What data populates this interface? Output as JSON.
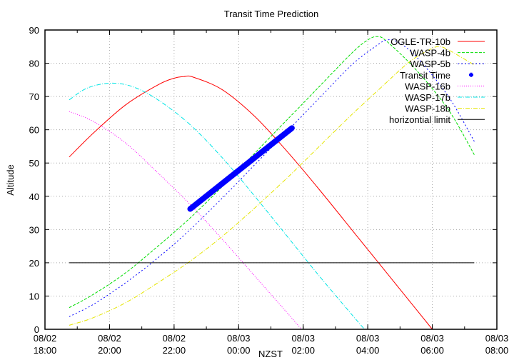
{
  "chart_data": {
    "type": "line",
    "title": "Transit Time Prediction",
    "xlabel": "NZST",
    "ylabel": "Altitude",
    "ylim": [
      0,
      90
    ],
    "xlim_hours": [
      0,
      14
    ],
    "x_origin": "08/02 18:00",
    "grid": true,
    "legend_position": "top-right inside",
    "y_ticks": [
      0,
      10,
      20,
      30,
      40,
      50,
      60,
      70,
      80,
      90
    ],
    "x_ticks": [
      {
        "date": "08/02",
        "time": "18:00",
        "h": 0
      },
      {
        "date": "08/02",
        "time": "20:00",
        "h": 2
      },
      {
        "date": "08/02",
        "time": "22:00",
        "h": 4
      },
      {
        "date": "08/03",
        "time": "00:00",
        "h": 6
      },
      {
        "date": "08/03",
        "time": "02:00",
        "h": 8
      },
      {
        "date": "08/03",
        "time": "04:00",
        "h": 10
      },
      {
        "date": "08/03",
        "time": "06:00",
        "h": 12
      },
      {
        "date": "08/03",
        "time": "08:00",
        "h": 14
      }
    ],
    "series": [
      {
        "name": "OGLE-TR-10b",
        "color": "#ff0000",
        "dash": "none",
        "points": [
          [
            0.75,
            51.8
          ],
          [
            1.5,
            59
          ],
          [
            2.5,
            67.5
          ],
          [
            3.5,
            73.5
          ],
          [
            4.0,
            75.5
          ],
          [
            4.3,
            76
          ],
          [
            4.6,
            75.8
          ],
          [
            5.5,
            72
          ],
          [
            6.5,
            64
          ],
          [
            7.5,
            53.5
          ],
          [
            8.5,
            42
          ],
          [
            9.5,
            30
          ],
          [
            10.5,
            18
          ],
          [
            11.5,
            6
          ],
          [
            12.0,
            0
          ]
        ]
      },
      {
        "name": "WASP-4b",
        "color": "#00dd00",
        "dash": "4,2",
        "points": [
          [
            0.75,
            6.5
          ],
          [
            1.5,
            10.5
          ],
          [
            2.5,
            17
          ],
          [
            3.5,
            25
          ],
          [
            4.5,
            33.5
          ],
          [
            5.5,
            43
          ],
          [
            6.5,
            53
          ],
          [
            7.5,
            63
          ],
          [
            8.5,
            73
          ],
          [
            9.5,
            83
          ],
          [
            10.0,
            87
          ],
          [
            10.3,
            88
          ],
          [
            10.6,
            86.5
          ],
          [
            11.5,
            78
          ],
          [
            12.5,
            66
          ],
          [
            13.3,
            52.5
          ]
        ]
      },
      {
        "name": "WASP-5b",
        "color": "#0000ff",
        "dash": "2,3",
        "points": [
          [
            0.75,
            3.8
          ],
          [
            1.5,
            7.5
          ],
          [
            2.5,
            14
          ],
          [
            3.5,
            21.5
          ],
          [
            4.5,
            30
          ],
          [
            5.5,
            39.5
          ],
          [
            6.5,
            49.5
          ],
          [
            7.5,
            59.5
          ],
          [
            8.5,
            69.5
          ],
          [
            9.5,
            79.5
          ],
          [
            10.3,
            85.5
          ],
          [
            10.6,
            87
          ],
          [
            10.9,
            86.5
          ],
          [
            11.5,
            82
          ],
          [
            12.5,
            70
          ],
          [
            13.3,
            56.5
          ]
        ]
      },
      {
        "name": "WASP-16b",
        "color": "#ff00ff",
        "dash": "1,2",
        "points": [
          [
            0.75,
            65.5
          ],
          [
            1.5,
            62.5
          ],
          [
            2.5,
            56
          ],
          [
            3.5,
            47
          ],
          [
            4.5,
            37.5
          ],
          [
            5.5,
            27
          ],
          [
            6.5,
            16
          ],
          [
            7.5,
            5
          ],
          [
            7.95,
            0
          ]
        ]
      },
      {
        "name": "WASP-17b",
        "color": "#00e5e5",
        "dash": "6,2,1,2",
        "points": [
          [
            0.75,
            69
          ],
          [
            1.3,
            72.5
          ],
          [
            2.0,
            74
          ],
          [
            2.7,
            73
          ],
          [
            3.5,
            69
          ],
          [
            4.5,
            61.5
          ],
          [
            5.5,
            51.5
          ],
          [
            6.5,
            40
          ],
          [
            7.5,
            28
          ],
          [
            8.5,
            16
          ],
          [
            9.5,
            4.5
          ],
          [
            9.9,
            0
          ]
        ]
      },
      {
        "name": "WASP-18b",
        "color": "#e5e500",
        "dash": "6,2,1,2",
        "points": [
          [
            0.75,
            1.2
          ],
          [
            1.5,
            3.5
          ],
          [
            2.5,
            8
          ],
          [
            3.5,
            14
          ],
          [
            4.5,
            20.5
          ],
          [
            5.5,
            28
          ],
          [
            6.5,
            36.5
          ],
          [
            7.5,
            45.5
          ],
          [
            8.5,
            55
          ],
          [
            9.5,
            64.5
          ],
          [
            10.5,
            73.5
          ],
          [
            11.3,
            80.5
          ],
          [
            11.9,
            84
          ],
          [
            12.2,
            85
          ],
          [
            12.5,
            84
          ],
          [
            13.3,
            79.5
          ]
        ]
      },
      {
        "name": "horizontial limit",
        "color": "#000000",
        "dash": "none",
        "points": [
          [
            0.75,
            20
          ],
          [
            13.3,
            20
          ]
        ]
      }
    ],
    "transit_time": {
      "name": "Transit Time",
      "color": "#0000ff",
      "start": [
        4.5,
        36.2
      ],
      "end": [
        7.65,
        60.5
      ]
    }
  }
}
